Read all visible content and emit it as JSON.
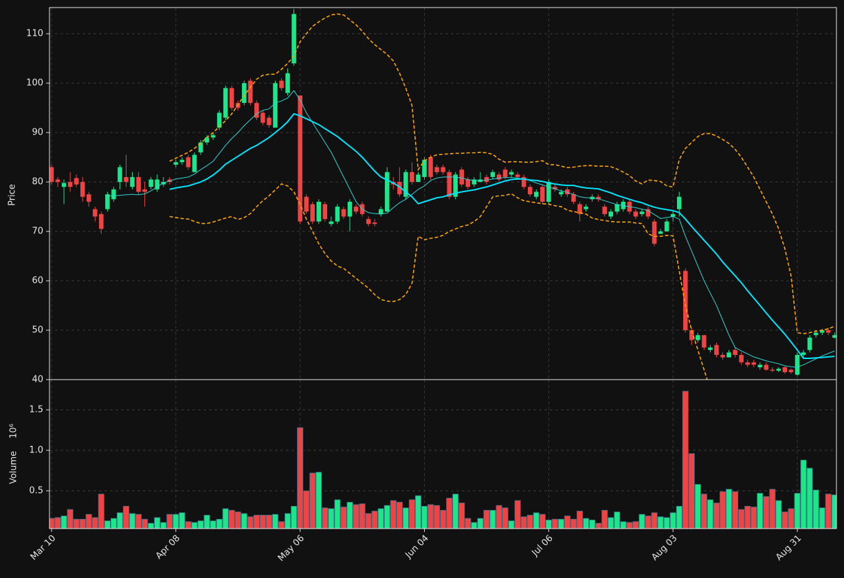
{
  "chart_data": {
    "type": "candlestick",
    "ylabel": "Price",
    "up_color": "#1de58a",
    "down_color": "#f04444",
    "grid": true,
    "xlim": [
      -0.33,
      126.3
    ],
    "xticks": [
      {
        "value": 0,
        "label": "Mar 10"
      },
      {
        "value": 20,
        "label": "Apr 08"
      },
      {
        "value": 40,
        "label": "May 06"
      },
      {
        "value": 60,
        "label": "Jun 04"
      },
      {
        "value": 80,
        "label": "Jul 06"
      },
      {
        "value": 100,
        "label": "Aug 03"
      },
      {
        "value": 120,
        "label": "Aug 31"
      }
    ],
    "ylim": [
      40,
      115.3
    ],
    "yticks": [
      40,
      50,
      60,
      70,
      80,
      90,
      100,
      110
    ],
    "open": [
      83,
      80.5,
      79,
      80,
      80.8,
      80,
      77.5,
      74.5,
      73.5,
      74.5,
      76.5,
      80,
      81,
      79,
      81,
      78.5,
      79,
      78.5,
      79.5,
      80.5,
      83.5,
      84,
      85,
      82,
      86,
      88,
      89,
      91,
      93,
      99,
      96,
      96,
      100.5,
      96,
      94,
      93,
      91,
      100.5,
      98,
      104,
      97.5,
      77,
      75.5,
      72,
      75.5,
      71.5,
      72,
      74.5,
      73,
      75,
      75.5,
      72.5,
      71.8,
      73.5,
      74,
      80,
      80,
      77,
      82,
      80,
      81,
      85,
      83,
      83,
      82,
      77,
      82.5,
      80.5,
      79.5,
      80,
      81,
      81,
      81.5,
      82.5,
      81.5,
      81.5,
      81,
      79,
      77,
      79,
      76,
      79,
      77.5,
      78.5,
      77.5,
      75.5,
      74.5,
      76.5,
      77,
      75,
      73,
      74,
      74.5,
      76,
      74,
      73.5,
      74.5,
      72,
      69.5,
      70,
      73,
      74.5,
      62,
      50,
      48,
      49,
      46,
      47,
      45,
      44.5,
      46,
      45,
      43.5,
      43.5,
      42.5,
      43,
      42,
      41.8,
      42.5,
      42,
      41,
      45,
      46,
      49,
      49.5,
      50,
      48.5
    ],
    "high": [
      83.5,
      81,
      80.5,
      82,
      81.5,
      81,
      78,
      75,
      74,
      78,
      79,
      83.5,
      85.5,
      82,
      82,
      80,
      81,
      81.5,
      81,
      81,
      84.5,
      85,
      85.5,
      86,
      88.5,
      89.5,
      90,
      94.5,
      99.5,
      99.5,
      96.5,
      100.5,
      101,
      96.5,
      94.5,
      93.5,
      100.5,
      101,
      103,
      115,
      97.5,
      77.5,
      76,
      76.5,
      76,
      73,
      75.5,
      75,
      76.5,
      75.5,
      76,
      73,
      72.5,
      75,
      83,
      81,
      83,
      82.5,
      84,
      82,
      85,
      85.5,
      83.5,
      83.5,
      82.5,
      82,
      83,
      81,
      81,
      82,
      81.5,
      82.5,
      82,
      83,
      82.5,
      82,
      81.5,
      79.5,
      78.5,
      79.5,
      80.5,
      79.5,
      78.5,
      79,
      78,
      76,
      75.5,
      77.5,
      77.5,
      75.5,
      74.5,
      76,
      76.5,
      76.5,
      74.5,
      74.5,
      75,
      72.5,
      70.5,
      72.5,
      74,
      78,
      62.5,
      50.5,
      49.5,
      49,
      47,
      47.5,
      45.5,
      46,
      46.5,
      45.5,
      44,
      44,
      43.5,
      43.5,
      42.5,
      42.5,
      42.8,
      42.2,
      45.5,
      46,
      49,
      50,
      50.3,
      50.5,
      49.5
    ],
    "low": [
      79.5,
      79,
      75.5,
      78,
      79,
      76,
      75,
      72,
      69.5,
      74,
      76,
      78.5,
      79,
      78.5,
      77.5,
      75,
      78.5,
      78,
      79,
      79.5,
      83,
      83.5,
      82.5,
      82,
      85.5,
      87.5,
      88.5,
      90.5,
      92.5,
      94.5,
      94.5,
      95.5,
      95.5,
      92.5,
      91.5,
      91,
      91,
      98.5,
      97.5,
      103.5,
      71.5,
      73.5,
      71.5,
      71.5,
      72,
      71,
      71.5,
      72.5,
      70,
      73.5,
      73,
      71,
      71,
      73,
      74,
      78.5,
      77,
      76.5,
      79.5,
      80,
      80.5,
      80.5,
      81.5,
      81.5,
      76.5,
      76.5,
      79,
      78.5,
      79,
      80,
      79.5,
      80.5,
      80,
      80.5,
      81,
      80.5,
      78.5,
      77,
      76.5,
      75.5,
      75.5,
      78,
      77,
      77,
      75.5,
      72,
      74,
      76,
      76,
      73,
      72.5,
      73.5,
      74,
      73.5,
      72.5,
      73,
      72.5,
      67,
      69.5,
      70,
      72,
      73,
      49.5,
      47,
      47.5,
      46,
      45.5,
      44.5,
      44,
      44.5,
      44.5,
      43,
      42.5,
      42.5,
      42,
      41.8,
      41.5,
      41.5,
      41.2,
      41.2,
      40.8,
      44.5,
      45.5,
      48.5,
      49,
      49,
      48.3
    ],
    "close": [
      80,
      80,
      79.8,
      79,
      79.5,
      77,
      76,
      73,
      70.5,
      77.5,
      78.5,
      83,
      80,
      81,
      78,
      78,
      80.5,
      80.5,
      80,
      80,
      84,
      84.5,
      83,
      85.5,
      88,
      89,
      89.5,
      94,
      99,
      95,
      95,
      100,
      96,
      93,
      92,
      91.5,
      100,
      99,
      102,
      114,
      72,
      74,
      72,
      76,
      72.5,
      72,
      75,
      73,
      76,
      74,
      73.5,
      71.5,
      71.5,
      74.5,
      82,
      79.5,
      77.5,
      82,
      80,
      81.5,
      84.5,
      81,
      82,
      82,
      77,
      81.5,
      79.5,
      79,
      80.5,
      80.5,
      80,
      82,
      80.5,
      81,
      82,
      81,
      79,
      77.5,
      78,
      76,
      80,
      78.5,
      78,
      77.5,
      76,
      73.5,
      75,
      77,
      76.5,
      73.5,
      74,
      75.5,
      76,
      74,
      73,
      74,
      73,
      67.5,
      70,
      72,
      73.5,
      77,
      50,
      48,
      49,
      46.5,
      46.5,
      45,
      44.5,
      45.5,
      45,
      43.5,
      43,
      43,
      43,
      42,
      41.8,
      42.2,
      41.5,
      41.5,
      45,
      45.5,
      48.5,
      49.5,
      50,
      49.5,
      49
    ],
    "series": [
      {
        "color": "#2fd6d6",
        "values": [
          null,
          null,
          null,
          null,
          null,
          null,
          null,
          null,
          null,
          77.2,
          77.2,
          77.3,
          77.4,
          77.5,
          77.4,
          77.6,
          78.2,
          79.0,
          79.8,
          80.2,
          80.6,
          80.8,
          81.0,
          81.6,
          82.5,
          83.3,
          84.2,
          85.8,
          87.4,
          88.8,
          90.0,
          91.4,
          92.6,
          93.8,
          94.5,
          94.8,
          96.0,
          96.4,
          97.0,
          98.5,
          96.6,
          94.0,
          92.0,
          90.0,
          88.0,
          86.0,
          83.5,
          81.0,
          78.5,
          76.0,
          74.5,
          73.8,
          73.6,
          73.5,
          73.7,
          74.8,
          75.8,
          76.5,
          77.5,
          78.5,
          79.2,
          80.3,
          80.8,
          81.0,
          81.0,
          81.0,
          80.8,
          80.5,
          80.3,
          80.3,
          80.4,
          80.6,
          80.8,
          80.9,
          80.9,
          80.8,
          80.6,
          80.3,
          79.8,
          79.4,
          79.0,
          78.6,
          78.2,
          77.9,
          77.5,
          77.0,
          76.8,
          76.8,
          76.6,
          76.2,
          75.8,
          75.4,
          75.2,
          75.0,
          74.8,
          74.5,
          74.2,
          73.4,
          72.6,
          72.8,
          73.0,
          72.5,
          69.0,
          66.0,
          63.0,
          60.0,
          57.5,
          55.0,
          52.0,
          49.0,
          46.5,
          45.8,
          45.2,
          44.6,
          44.2,
          43.8,
          43.5,
          43.2,
          42.8,
          42.6,
          42.5,
          43.0,
          43.6,
          44.2,
          44.8,
          45.3,
          45.8
        ]
      },
      {
        "color": "#00e5ff",
        "values": [
          null,
          null,
          null,
          null,
          null,
          null,
          null,
          null,
          null,
          null,
          null,
          null,
          null,
          null,
          null,
          null,
          null,
          null,
          null,
          78.5,
          78.8,
          79.0,
          79.2,
          79.6,
          80.0,
          80.6,
          81.4,
          82.4,
          83.6,
          84.4,
          85.2,
          86.0,
          86.8,
          87.4,
          88.2,
          89.0,
          90.0,
          91.0,
          92.2,
          93.8,
          93.4,
          92.8,
          92.2,
          91.6,
          90.8,
          90.0,
          89.2,
          88.2,
          87.2,
          86.2,
          85.0,
          83.6,
          82.2,
          81.0,
          80.4,
          79.8,
          79.0,
          78.0,
          77.0,
          75.6,
          76.0,
          76.4,
          76.8,
          77.0,
          77.4,
          77.7,
          78.0,
          78.2,
          78.4,
          78.7,
          79.0,
          79.4,
          79.8,
          80.2,
          80.5,
          80.6,
          80.6,
          80.4,
          80.3,
          80.1,
          79.8,
          79.6,
          79.4,
          79.3,
          79.3,
          79.0,
          78.8,
          78.7,
          78.6,
          78.2,
          77.8,
          77.3,
          76.9,
          76.5,
          76.1,
          75.8,
          75.3,
          74.9,
          74.6,
          74.4,
          74.2,
          73.8,
          72.5,
          71.0,
          69.6,
          68.2,
          66.8,
          65.4,
          63.8,
          62.4,
          61.0,
          59.6,
          58.0,
          56.5,
          55.0,
          53.5,
          52.0,
          50.6,
          49.2,
          47.6,
          46.0,
          44.3,
          44.3,
          44.4,
          44.5,
          44.6,
          44.7
        ]
      },
      {
        "color": "#ffa500",
        "linestyle": "dashed",
        "values": [
          null,
          null,
          null,
          null,
          null,
          null,
          null,
          null,
          null,
          null,
          null,
          null,
          null,
          null,
          null,
          null,
          null,
          null,
          null,
          84.2,
          84.8,
          85.4,
          86.0,
          86.8,
          87.8,
          89.0,
          90.0,
          91.2,
          92.4,
          93.8,
          95.6,
          97.5,
          99.2,
          100.8,
          101.6,
          101.8,
          101.8,
          102.8,
          104.0,
          105.5,
          108.4,
          110.0,
          111.5,
          112.4,
          113.2,
          113.8,
          114.0,
          113.8,
          112.8,
          111.8,
          110.5,
          109.0,
          107.8,
          106.8,
          105.8,
          104.5,
          102.0,
          99.0,
          95.5,
          82.5,
          84.3,
          85.0,
          85.5,
          85.6,
          85.7,
          85.8,
          85.8,
          85.9,
          85.9,
          86.0,
          85.9,
          85.6,
          84.6,
          84.0,
          84.1,
          84.1,
          84.0,
          84.0,
          84.1,
          84.3,
          83.5,
          83.5,
          83.2,
          82.9,
          83.0,
          83.2,
          83.3,
          83.3,
          83.2,
          83.2,
          83.1,
          82.6,
          82.0,
          81.3,
          80.2,
          79.6,
          80.4,
          80.3,
          80.1,
          79.2,
          79.0,
          84.5,
          86.8,
          88.0,
          89.2,
          89.8,
          89.8,
          89.3,
          88.6,
          87.8,
          86.6,
          85.0,
          83.0,
          81.0,
          78.5,
          76.0,
          73.5,
          70.5,
          66.5,
          61.0,
          49.5,
          49.3,
          49.5,
          49.8,
          50.0,
          50.3,
          50.8
        ]
      },
      {
        "color": "#ffa500",
        "linestyle": "dashed",
        "values": [
          null,
          null,
          null,
          null,
          null,
          null,
          null,
          null,
          null,
          null,
          null,
          null,
          null,
          null,
          null,
          null,
          null,
          null,
          null,
          73.0,
          72.8,
          72.6,
          72.5,
          72.0,
          71.6,
          71.6,
          71.9,
          72.3,
          72.7,
          73.0,
          72.4,
          72.8,
          73.6,
          75.0,
          76.2,
          77.2,
          78.4,
          79.6,
          79.2,
          78.0,
          75.5,
          72.5,
          70.0,
          67.5,
          65.5,
          64.0,
          63.0,
          62.5,
          61.5,
          60.5,
          59.5,
          58.5,
          57.2,
          56.2,
          55.9,
          55.8,
          56.2,
          57.2,
          59.5,
          69.0,
          68.3,
          68.6,
          68.8,
          69.2,
          70.0,
          70.5,
          71.0,
          71.3,
          72.0,
          73.0,
          75.0,
          77.0,
          77.2,
          77.3,
          77.6,
          76.8,
          76.2,
          76.0,
          75.8,
          75.6,
          75.5,
          75.2,
          75.0,
          74.3,
          74.0,
          73.8,
          73.5,
          72.7,
          72.4,
          72.2,
          72.0,
          71.9,
          71.9,
          71.9,
          71.7,
          71.6,
          69.5,
          69.0,
          69.0,
          69.2,
          69.1,
          62.0,
          55.0,
          50.0,
          46.0,
          42.0,
          38.0,
          null,
          null,
          null,
          null,
          null,
          null,
          null,
          null,
          null,
          null,
          null,
          null,
          null,
          null,
          null,
          null,
          null,
          null,
          null,
          null
        ]
      }
    ],
    "volume": {
      "ylabel": "Volume",
      "offset_label": "10⁶",
      "ylim": [
        0.034,
        1.873
      ],
      "yticks": [
        0.5,
        {
          "value": 1,
          "label": "1.0"
        },
        1.5
      ],
      "values": [
        0.16,
        0.17,
        0.19,
        0.27,
        0.15,
        0.15,
        0.21,
        0.17,
        0.46,
        0.13,
        0.16,
        0.23,
        0.31,
        0.22,
        0.21,
        0.15,
        0.1,
        0.17,
        0.11,
        0.21,
        0.21,
        0.23,
        0.12,
        0.11,
        0.13,
        0.2,
        0.13,
        0.15,
        0.28,
        0.26,
        0.24,
        0.22,
        0.18,
        0.2,
        0.2,
        0.2,
        0.21,
        0.12,
        0.22,
        0.31,
        1.28,
        0.5,
        0.72,
        0.73,
        0.29,
        0.28,
        0.39,
        0.3,
        0.36,
        0.33,
        0.34,
        0.22,
        0.25,
        0.28,
        0.32,
        0.38,
        0.36,
        0.29,
        0.39,
        0.44,
        0.31,
        0.33,
        0.32,
        0.26,
        0.41,
        0.46,
        0.35,
        0.16,
        0.11,
        0.16,
        0.26,
        0.26,
        0.32,
        0.29,
        0.13,
        0.38,
        0.18,
        0.2,
        0.23,
        0.21,
        0.14,
        0.15,
        0.15,
        0.19,
        0.15,
        0.25,
        0.16,
        0.14,
        0.1,
        0.26,
        0.17,
        0.24,
        0.12,
        0.11,
        0.12,
        0.21,
        0.19,
        0.23,
        0.18,
        0.17,
        0.23,
        0.31,
        1.73,
        0.96,
        0.58,
        0.46,
        0.39,
        0.35,
        0.49,
        0.52,
        0.49,
        0.27,
        0.31,
        0.3,
        0.47,
        0.43,
        0.52,
        0.38,
        0.24,
        0.28,
        0.47,
        0.88,
        0.78,
        0.51,
        0.29,
        0.46,
        0.45
      ]
    }
  }
}
